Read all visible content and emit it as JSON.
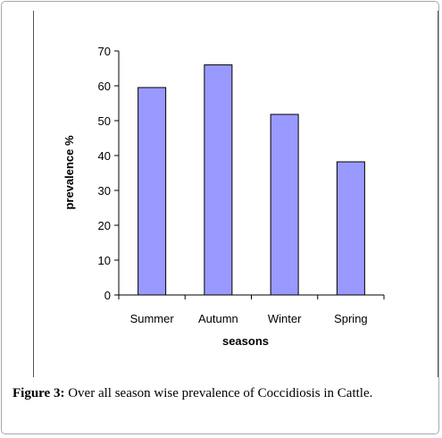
{
  "chart_data": {
    "type": "bar",
    "categories": [
      "Summer",
      "Autumn",
      "Winter",
      "Spring"
    ],
    "values": [
      59.5,
      66,
      51.8,
      38.2
    ],
    "xlabel": "seasons",
    "ylabel": "prevalence %",
    "ylim": [
      0,
      70
    ],
    "yticks": [
      "0",
      "10",
      "20",
      "30",
      "40",
      "50",
      "60",
      "70"
    ],
    "bar_color": "#9999ff",
    "grid": false,
    "legend": "none"
  },
  "caption": {
    "label": "Figure 3:",
    "text": " Over all season wise prevalence of Coccidiosis in Cattle."
  }
}
